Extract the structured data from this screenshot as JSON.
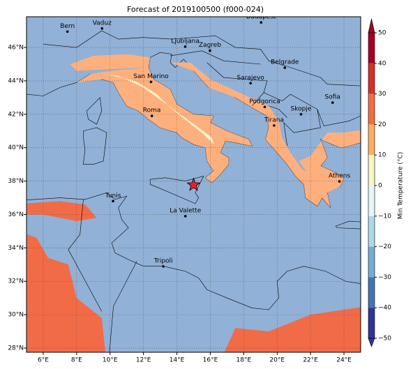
{
  "map": {
    "title": "Forecast of 2019100500 (f000-024)",
    "xlim": [
      5.0,
      25.0
    ],
    "ylim": [
      27.75,
      47.84
    ],
    "xticks": [
      {
        "value": 6,
        "label": "6°E"
      },
      {
        "value": 8,
        "label": "8°E"
      },
      {
        "value": 10,
        "label": "10°E"
      },
      {
        "value": 12,
        "label": "12°E"
      },
      {
        "value": 14,
        "label": "14°E"
      },
      {
        "value": 16,
        "label": "16°E"
      },
      {
        "value": 18,
        "label": "18°E"
      },
      {
        "value": 20,
        "label": "20°E"
      },
      {
        "value": 22,
        "label": "22°E"
      },
      {
        "value": 24,
        "label": "24°E"
      }
    ],
    "yticks": [
      {
        "value": 28,
        "label": "28°N"
      },
      {
        "value": 30,
        "label": "30°N"
      },
      {
        "value": 32,
        "label": "32°N"
      },
      {
        "value": 34,
        "label": "34°N"
      },
      {
        "value": 36,
        "label": "36°N"
      },
      {
        "value": 38,
        "label": "38°N"
      },
      {
        "value": 40,
        "label": "40°N"
      },
      {
        "value": 42,
        "label": "42°N"
      },
      {
        "value": 44,
        "label": "44°N"
      },
      {
        "value": 46,
        "label": "46°N"
      }
    ],
    "grid": true,
    "cities": [
      {
        "name": "Bern",
        "lon": 7.45,
        "lat": 46.95
      },
      {
        "name": "Vaduz",
        "lon": 9.52,
        "lat": 47.14
      },
      {
        "name": "Budapest",
        "lon": 19.04,
        "lat": 47.5
      },
      {
        "name": "Ljubljana",
        "lon": 14.5,
        "lat": 46.05
      },
      {
        "name": "Zagreb",
        "lon": 15.98,
        "lat": 45.81
      },
      {
        "name": "Belgrade",
        "lon": 20.46,
        "lat": 44.79
      },
      {
        "name": "San Marino",
        "lon": 12.45,
        "lat": 43.94
      },
      {
        "name": "Sarajevo",
        "lon": 18.41,
        "lat": 43.86
      },
      {
        "name": "Sofia",
        "lon": 23.32,
        "lat": 42.7
      },
      {
        "name": "Podgorica",
        "lon": 19.26,
        "lat": 42.44
      },
      {
        "name": "Skopje",
        "lon": 21.43,
        "lat": 42.0
      },
      {
        "name": "Roma",
        "lon": 12.5,
        "lat": 41.9
      },
      {
        "name": "Tirana",
        "lon": 19.82,
        "lat": 41.33
      },
      {
        "name": "Athens",
        "lon": 23.73,
        "lat": 37.98
      },
      {
        "name": "Tunis",
        "lon": 10.18,
        "lat": 36.8
      },
      {
        "name": "La Valette",
        "lon": 14.51,
        "lat": 35.9
      },
      {
        "name": "Tripoli",
        "lon": 13.19,
        "lat": 32.89
      }
    ],
    "marker": {
      "lon": 15.0,
      "lat": 37.77,
      "color": "#e8202a"
    },
    "colorbar": {
      "label": "Min Temperature (°C)",
      "lim": [
        -50,
        50
      ],
      "ticks": [
        {
          "value": 50,
          "label": "50"
        },
        {
          "value": 40,
          "label": "40"
        },
        {
          "value": 30,
          "label": "30"
        },
        {
          "value": 20,
          "label": "20"
        },
        {
          "value": 10,
          "label": "10"
        },
        {
          "value": 0,
          "label": "0"
        },
        {
          "value": -10,
          "label": "−10"
        },
        {
          "value": -20,
          "label": "−20"
        },
        {
          "value": -30,
          "label": "−30"
        },
        {
          "value": -40,
          "label": "−40"
        },
        {
          "value": -50,
          "label": "−50"
        }
      ],
      "colors": [
        "#a50026",
        "#d73027",
        "#f46d43",
        "#fdae61",
        "#fbf4c4",
        "#e6f5f8",
        "#abd9e9",
        "#74add1",
        "#4575b4",
        "#313695"
      ]
    }
  }
}
